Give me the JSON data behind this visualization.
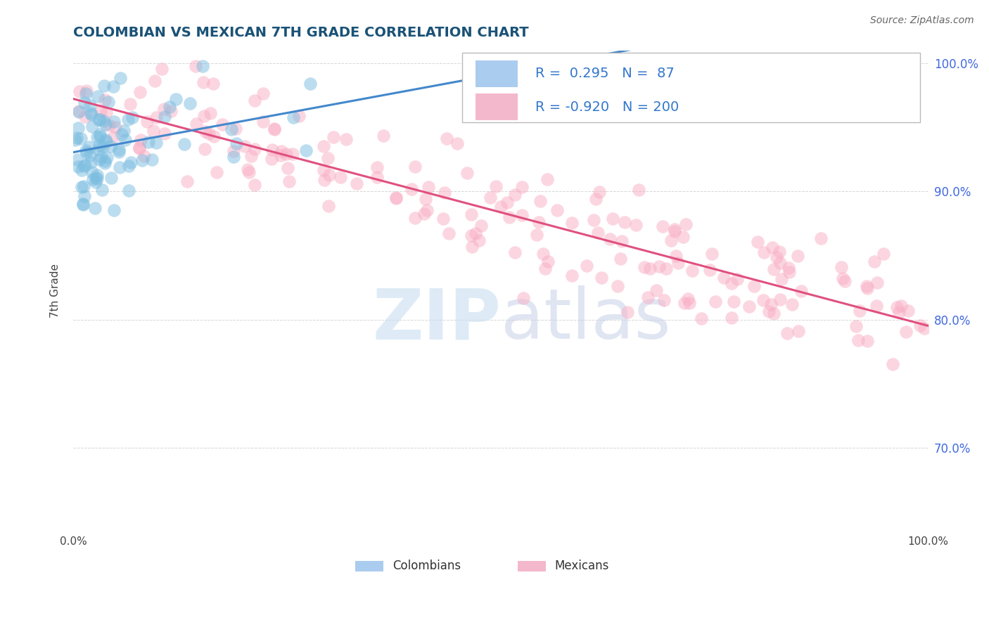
{
  "title": "COLOMBIAN VS MEXICAN 7TH GRADE CORRELATION CHART",
  "source_text": "Source: ZipAtlas.com",
  "ylabel": "7th Grade",
  "r_colombian": 0.295,
  "n_colombian": 87,
  "r_mexican": -0.92,
  "n_mexican": 200,
  "color_colombian": "#7bbde0",
  "color_mexican": "#f9aec5",
  "color_line_colombian": "#4488cc",
  "color_line_mexican": "#e05080",
  "background_color": "#ffffff",
  "grid_color": "#cccccc",
  "title_color": "#1a5276",
  "legend_box_color_colombian": "#aaccee",
  "legend_box_color_mexican": "#f4b8cc",
  "xlim": [
    0.0,
    1.0
  ],
  "ylim": [
    0.635,
    1.01
  ],
  "right_yticks": [
    0.7,
    0.8,
    0.9,
    1.0
  ],
  "right_yticklabels": [
    "70.0%",
    "80.0%",
    "90.0%",
    "100.0%"
  ]
}
